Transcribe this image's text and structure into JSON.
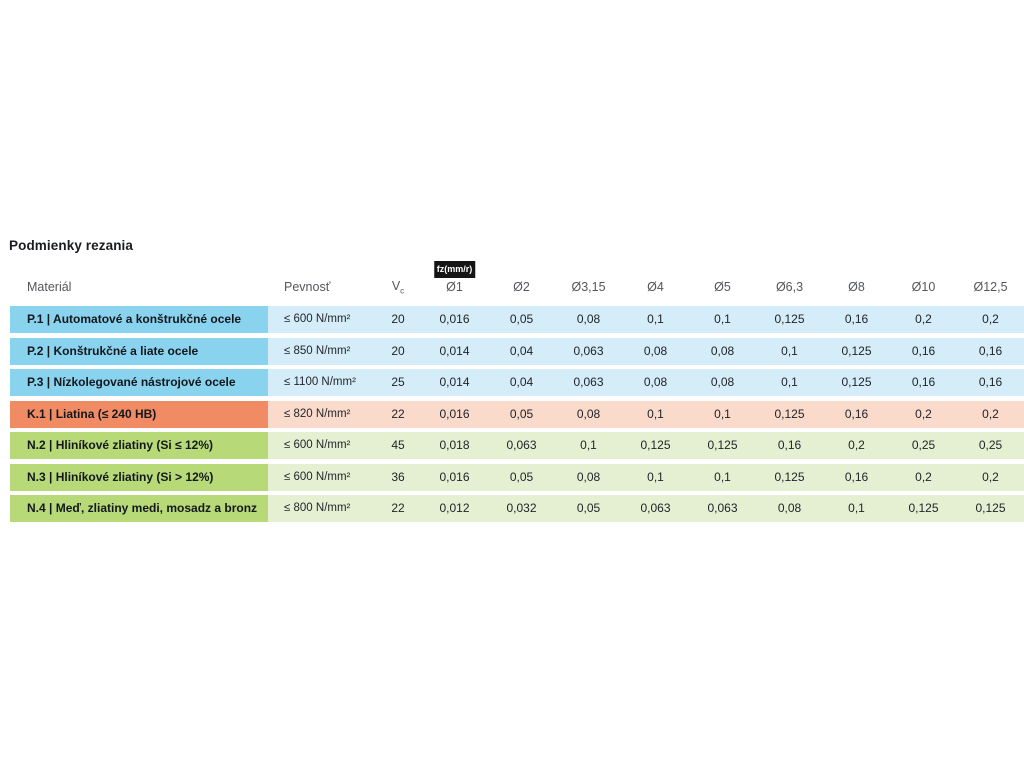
{
  "page": {
    "title": "Podmienky rezania"
  },
  "table": {
    "badge": "fz(mm/r)",
    "headers": {
      "material": "Materiál",
      "strength": "Pevnosť",
      "vc_main": "V",
      "vc_sub": "c",
      "diameters": [
        "Ø1",
        "Ø2",
        "Ø3,15",
        "Ø4",
        "Ø5",
        "Ø6,3",
        "Ø8",
        "Ø10",
        "Ø12,5"
      ]
    },
    "colors": {
      "P": {
        "label_bg": "#89d3ef",
        "row_bg": "#d5edf8"
      },
      "K": {
        "label_bg": "#f08b64",
        "row_bg": "#fadacb"
      },
      "N": {
        "label_bg": "#b7d977",
        "row_bg": "#e5f0d3"
      }
    },
    "rows": [
      {
        "group": "P",
        "material": "P.1 | Automatové a konštrukčné ocele",
        "strength": "≤ 600 N/mm²",
        "vc": "20",
        "values": [
          "0,016",
          "0,05",
          "0,08",
          "0,1",
          "0,1",
          "0,125",
          "0,16",
          "0,2",
          "0,2"
        ]
      },
      {
        "group": "P",
        "material": "P.2 | Konštrukčné a liate ocele",
        "strength": "≤ 850 N/mm²",
        "vc": "20",
        "values": [
          "0,014",
          "0,04",
          "0,063",
          "0,08",
          "0,08",
          "0,1",
          "0,125",
          "0,16",
          "0,16"
        ]
      },
      {
        "group": "P",
        "material": "P.3 | Nízkolegované nástrojové ocele",
        "strength": "≤ 1100 N/mm²",
        "vc": "25",
        "values": [
          "0,014",
          "0,04",
          "0,063",
          "0,08",
          "0,08",
          "0,1",
          "0,125",
          "0,16",
          "0,16"
        ]
      },
      {
        "group": "K",
        "material": "K.1 | Liatina (≤ 240 HB)",
        "strength": "≤ 820 N/mm²",
        "vc": "22",
        "values": [
          "0,016",
          "0,05",
          "0,08",
          "0,1",
          "0,1",
          "0,125",
          "0,16",
          "0,2",
          "0,2"
        ]
      },
      {
        "group": "N",
        "material": "N.2 | Hliníkové zliatiny (Si ≤ 12%)",
        "strength": "≤ 600 N/mm²",
        "vc": "45",
        "values": [
          "0,018",
          "0,063",
          "0,1",
          "0,125",
          "0,125",
          "0,16",
          "0,2",
          "0,25",
          "0,25"
        ]
      },
      {
        "group": "N",
        "material": "N.3 | Hliníkové zliatiny (Si > 12%)",
        "strength": "≤ 600 N/mm²",
        "vc": "36",
        "values": [
          "0,016",
          "0,05",
          "0,08",
          "0,1",
          "0,1",
          "0,125",
          "0,16",
          "0,2",
          "0,2"
        ]
      },
      {
        "group": "N",
        "material": "N.4 | Meď, zliatiny medi, mosadz a bronz",
        "strength": "≤ 800 N/mm²",
        "vc": "22",
        "values": [
          "0,012",
          "0,032",
          "0,05",
          "0,063",
          "0,063",
          "0,08",
          "0,1",
          "0,125",
          "0,125"
        ]
      }
    ]
  }
}
